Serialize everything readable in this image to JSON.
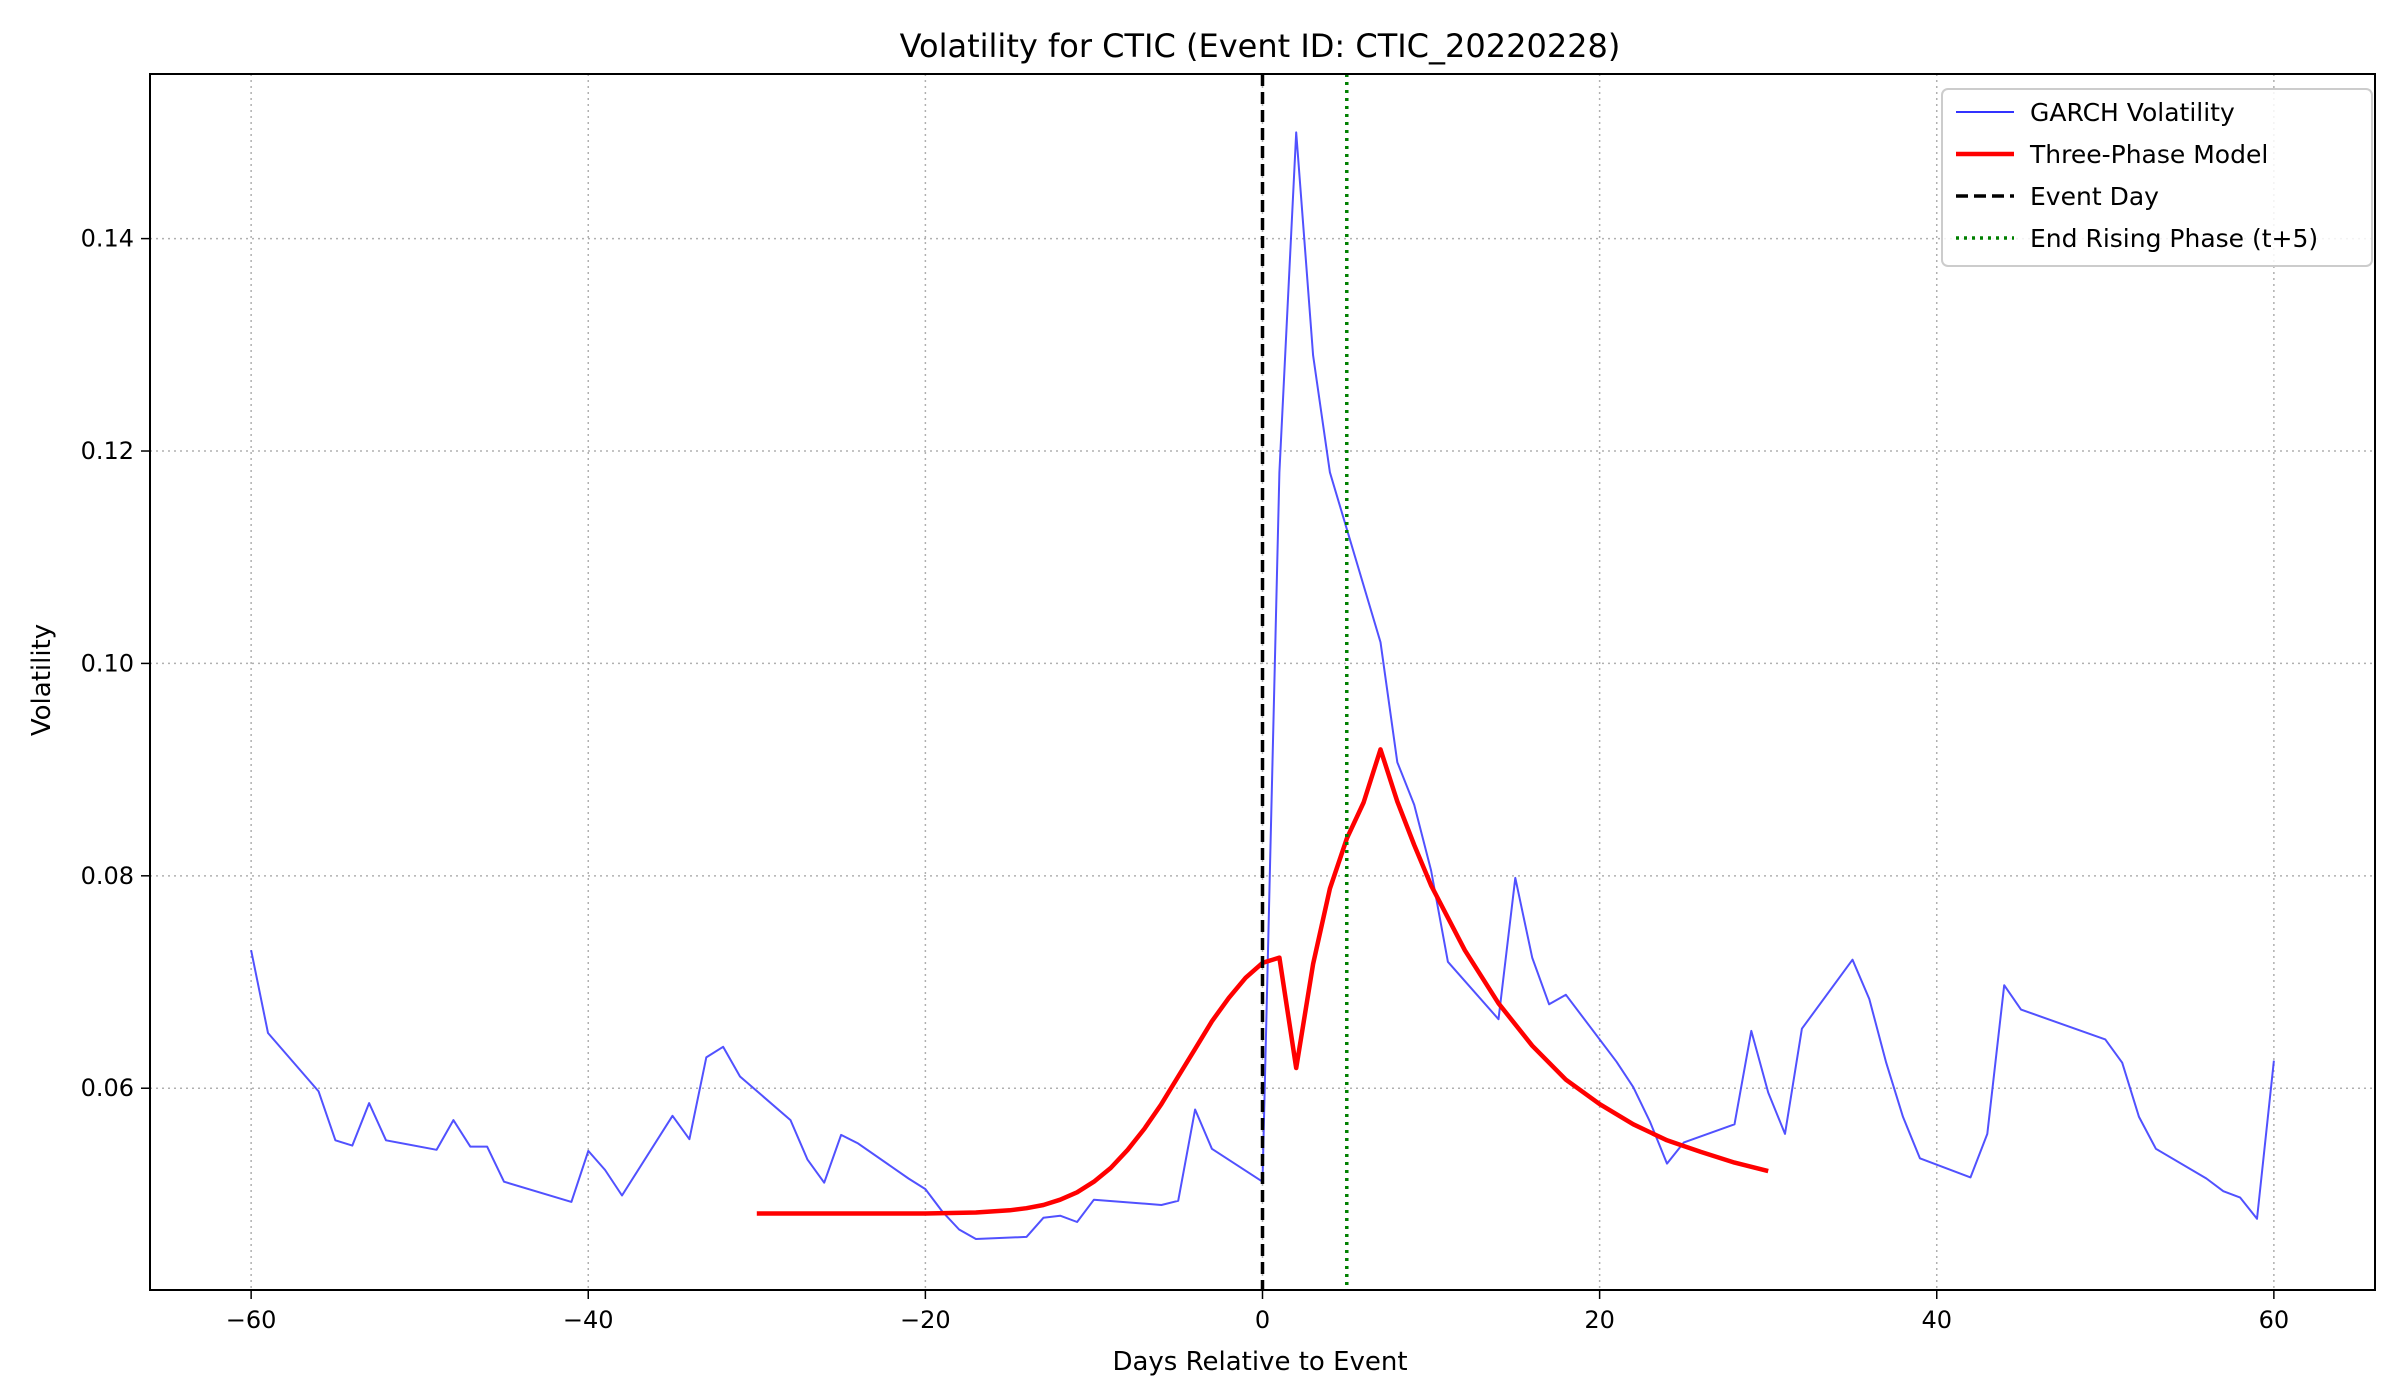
{
  "chart_data": {
    "type": "line",
    "title": "Volatility for CTIC (Event ID: CTIC_20220228)",
    "xlabel": "Days Relative to Event",
    "ylabel": "Volatility",
    "xlim": [
      -66,
      66
    ],
    "ylim": [
      0.041,
      0.1555
    ],
    "xticks": [
      -60,
      -40,
      -20,
      0,
      20,
      40,
      60
    ],
    "xtick_labels": [
      "−60",
      "−40",
      "−20",
      "0",
      "20",
      "40",
      "60"
    ],
    "yticks": [
      0.06,
      0.08,
      0.1,
      0.12,
      0.14
    ],
    "ytick_labels": [
      "0.06",
      "0.08",
      "0.10",
      "0.12",
      "0.14"
    ],
    "grid": true,
    "legend_position": "top-right",
    "colors": {
      "garch": "#3333ff",
      "model": "#ff0000",
      "event": "#000000",
      "rising_end": "#008000",
      "grid": "#b0b0b0"
    },
    "series": [
      {
        "name": "GARCH Volatility",
        "style": "solid-thin",
        "x": [
          -60,
          -59,
          -56,
          -55,
          -54,
          -53,
          -52,
          -49,
          -48,
          -47,
          -46,
          -45,
          -41,
          -40,
          -39,
          -38,
          -35,
          -34,
          -33,
          -32,
          -31,
          -28,
          -27,
          -26,
          -25,
          -24,
          -21,
          -20,
          -19,
          -18,
          -17,
          -14,
          -13,
          -12,
          -11,
          -10,
          -6,
          -5,
          -4,
          -3,
          0,
          1,
          2,
          3,
          4,
          7,
          8,
          9,
          10,
          11,
          14,
          15,
          16,
          17,
          18,
          21,
          22,
          23,
          24,
          25,
          28,
          29,
          30,
          31,
          32,
          35,
          36,
          37,
          38,
          39,
          42,
          43,
          44,
          45,
          50,
          51,
          52,
          53,
          56,
          57,
          58,
          59,
          60
        ],
        "values": [
          0.073,
          0.0652,
          0.0597,
          0.0551,
          0.0546,
          0.0586,
          0.0551,
          0.0542,
          0.057,
          0.0545,
          0.0545,
          0.0512,
          0.0493,
          0.0541,
          0.0523,
          0.0499,
          0.0574,
          0.0552,
          0.0629,
          0.0639,
          0.0611,
          0.057,
          0.0533,
          0.0511,
          0.0556,
          0.0548,
          0.0515,
          0.0505,
          0.0484,
          0.0467,
          0.0458,
          0.046,
          0.0478,
          0.048,
          0.0474,
          0.0495,
          0.049,
          0.0494,
          0.058,
          0.0543,
          0.0512,
          0.118,
          0.15,
          0.129,
          0.118,
          0.102,
          0.0907,
          0.0867,
          0.0805,
          0.0719,
          0.0665,
          0.0798,
          0.0723,
          0.0679,
          0.0688,
          0.0625,
          0.0601,
          0.0568,
          0.0529,
          0.0549,
          0.0566,
          0.0654,
          0.0596,
          0.0557,
          0.0656,
          0.0721,
          0.0684,
          0.0624,
          0.0573,
          0.0534,
          0.0516,
          0.0557,
          0.0697,
          0.0674,
          0.0646,
          0.0624,
          0.0573,
          0.0543,
          0.0515,
          0.0503,
          0.0497,
          0.0477,
          0.0626
        ]
      },
      {
        "name": "Three-Phase Model",
        "style": "solid-thick",
        "x": [
          -30,
          -20,
          -17,
          -16,
          -15,
          -14,
          -13,
          -12,
          -11,
          -10,
          -9,
          -8,
          -7,
          -6,
          -5,
          -4,
          -3,
          -2,
          -1,
          0,
          1,
          2,
          3,
          4,
          5,
          6,
          7,
          8,
          9,
          10,
          12,
          14,
          16,
          18,
          20,
          22,
          24,
          26,
          28,
          30
        ],
        "values": [
          0.0482,
          0.0482,
          0.0483,
          0.0484,
          0.0485,
          0.0487,
          0.049,
          0.0495,
          0.0502,
          0.0512,
          0.0525,
          0.0542,
          0.0562,
          0.0585,
          0.0611,
          0.0637,
          0.0663,
          0.0685,
          0.0704,
          0.0718,
          0.0723,
          0.0619,
          0.0717,
          0.0788,
          0.0835,
          0.0869,
          0.0919,
          0.087,
          0.0829,
          0.0791,
          0.073,
          0.068,
          0.064,
          0.0608,
          0.0585,
          0.0566,
          0.0551,
          0.054,
          0.053,
          0.0522
        ]
      },
      {
        "name": "Event Day",
        "style": "dashed-vertical",
        "x_position": 0
      },
      {
        "name": "End Rising Phase (t+5)",
        "style": "dotted-vertical",
        "x_position": 5
      }
    ]
  }
}
